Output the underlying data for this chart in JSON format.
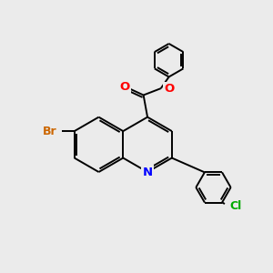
{
  "bg_color": "#ebebeb",
  "bond_color": "#000000",
  "bond_width": 1.4,
  "atom_colors": {
    "Br": "#cc6600",
    "Cl": "#00aa00",
    "N": "#0000ff",
    "O": "#ff0000"
  },
  "font_size": 8.5,
  "fig_size": [
    3.0,
    3.0
  ],
  "dpi": 100
}
